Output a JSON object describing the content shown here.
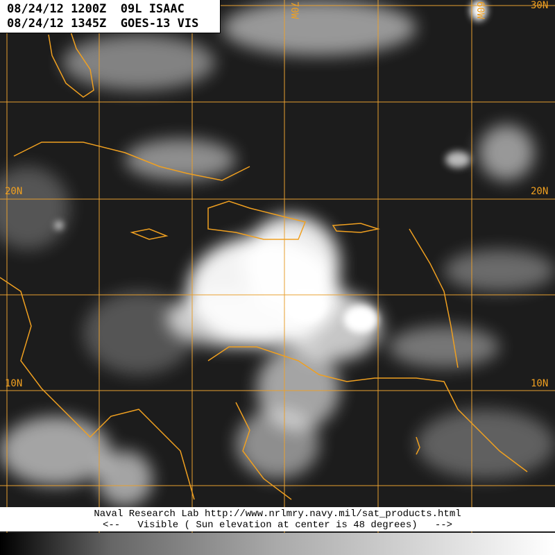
{
  "header": {
    "line1": "08/24/12 1200Z  09L ISAAC",
    "line2": "08/24/12 1345Z  GOES-13 VIS"
  },
  "footer": {
    "line1": "Naval Research Lab http://www.nrlmry.navy.mil/sat_products.html",
    "line2": "<--   Visible ( Sun elevation at center is 48 degrees)   -->"
  },
  "grid_labels": {
    "lat_20_left": "20N",
    "lat_20_right": "20N",
    "lat_10_left": "10N",
    "lat_10_right": "10N",
    "lat_30_right": "30N",
    "lon_70": "70W",
    "lon_60": "60W"
  },
  "colors": {
    "coastline": "#f0a020",
    "grid": "#e8a030",
    "background": "#1a1a1a"
  },
  "legend": {
    "type": "grayscale-brightness-ramp"
  }
}
